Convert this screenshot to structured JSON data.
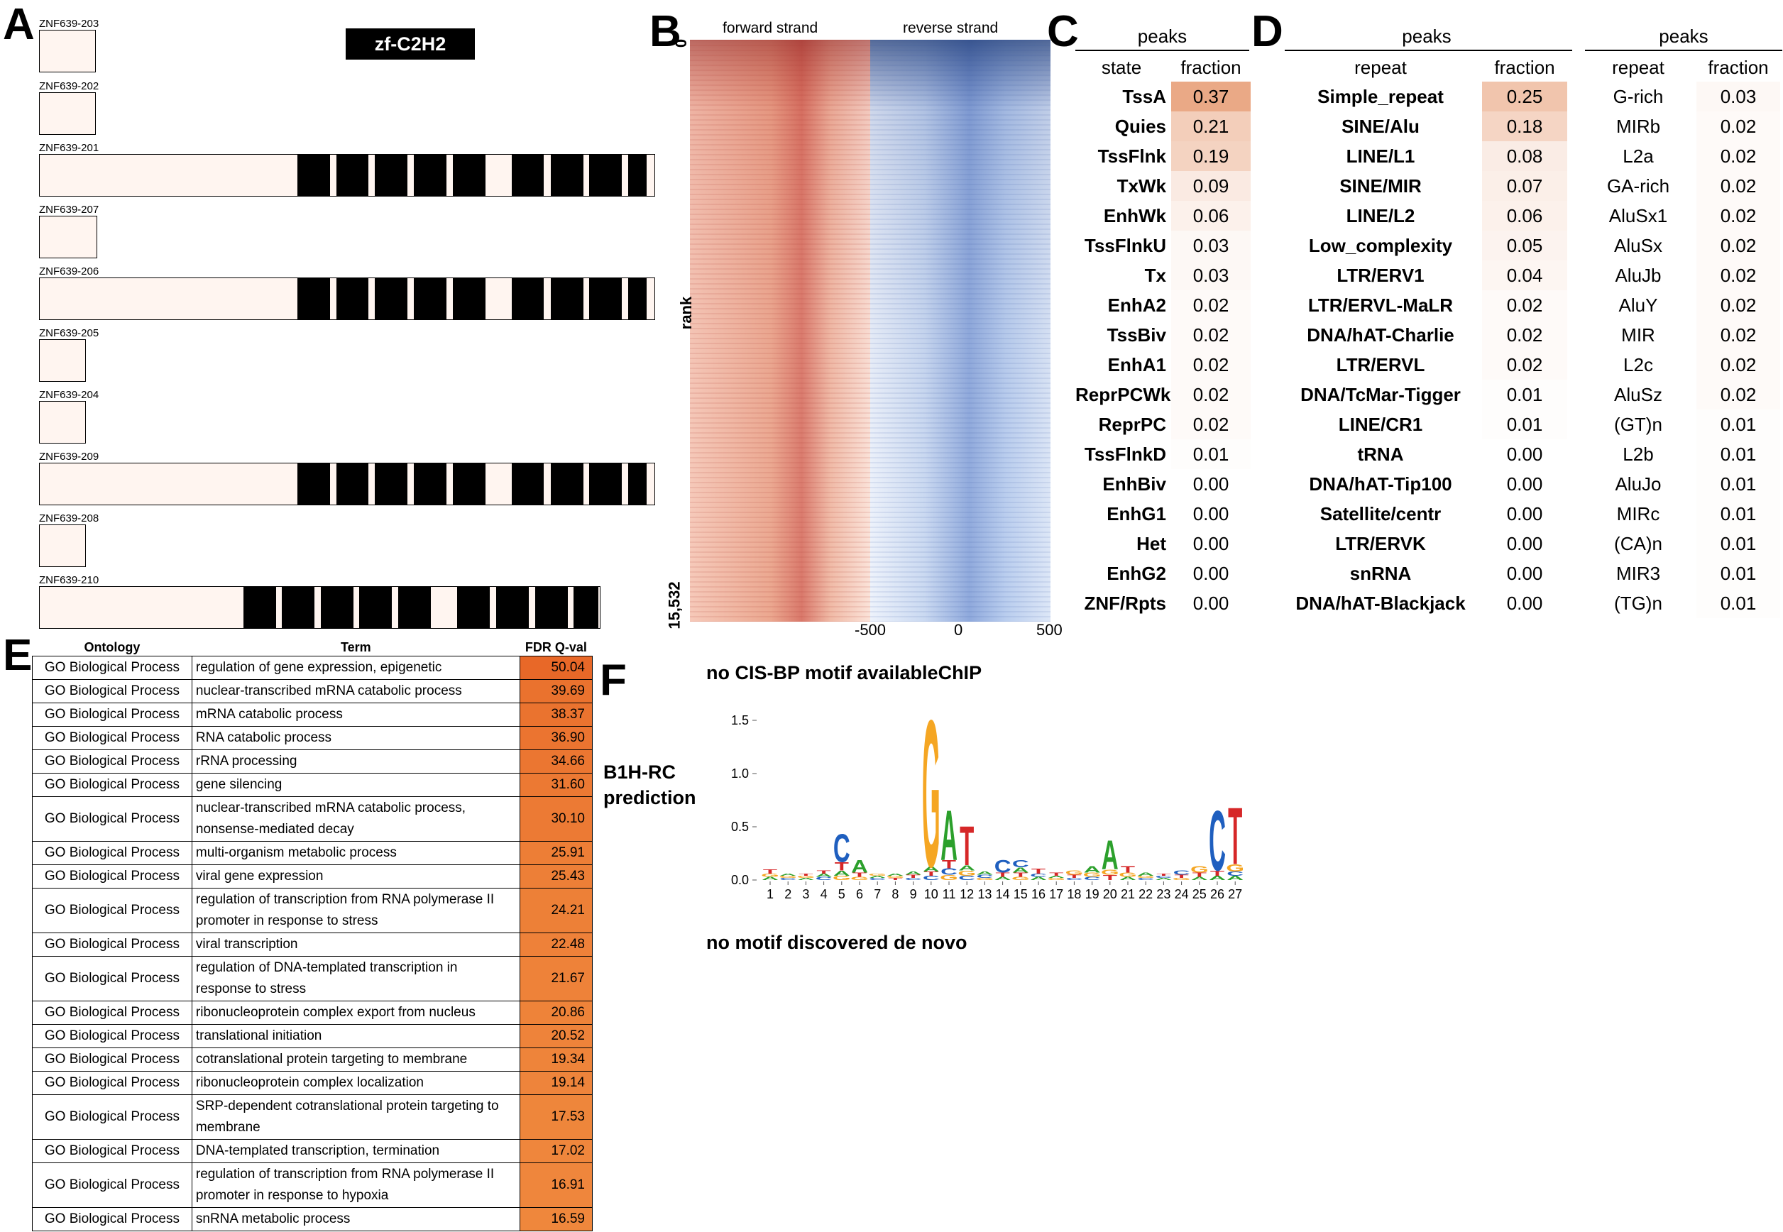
{
  "panels": {
    "a": "A",
    "b": "B",
    "c": "C",
    "d": "D",
    "e": "E",
    "f": "F"
  },
  "panel_a": {
    "domain_label": "zf-C2H2",
    "isoforms": [
      {
        "name": "ZNF639-203"
      },
      {
        "name": "ZNF639-202"
      },
      {
        "name": "ZNF639-201"
      },
      {
        "name": "ZNF639-207"
      },
      {
        "name": "ZNF639-206"
      },
      {
        "name": "ZNF639-205"
      },
      {
        "name": "ZNF639-204"
      },
      {
        "name": "ZNF639-209"
      },
      {
        "name": "ZNF639-208"
      },
      {
        "name": "ZNF639-210"
      }
    ]
  },
  "panel_b": {
    "forward_title": "forward strand",
    "reverse_title": "reverse strand",
    "y_top": "0",
    "y_label": "rank",
    "y_bottom": "15,532",
    "x_ticks": [
      "-500",
      "0",
      "500"
    ],
    "colors": {
      "forward": "#c0392b",
      "reverse": "#1f3f8f"
    }
  },
  "panel_c": {
    "header": "peaks",
    "col_state": "state",
    "col_fraction": "fraction",
    "rows": [
      {
        "label": "TssA",
        "value": "0.37"
      },
      {
        "label": "Quies",
        "value": "0.21"
      },
      {
        "label": "TssFlnk",
        "value": "0.19"
      },
      {
        "label": "TxWk",
        "value": "0.09"
      },
      {
        "label": "EnhWk",
        "value": "0.06"
      },
      {
        "label": "TssFlnkU",
        "value": "0.03"
      },
      {
        "label": "Tx",
        "value": "0.03"
      },
      {
        "label": "EnhA2",
        "value": "0.02"
      },
      {
        "label": "TssBiv",
        "value": "0.02"
      },
      {
        "label": "EnhA1",
        "value": "0.02"
      },
      {
        "label": "ReprPCWk",
        "value": "0.02"
      },
      {
        "label": "ReprPC",
        "value": "0.02"
      },
      {
        "label": "TssFlnkD",
        "value": "0.01"
      },
      {
        "label": "EnhBiv",
        "value": "0.00"
      },
      {
        "label": "EnhG1",
        "value": "0.00"
      },
      {
        "label": "Het",
        "value": "0.00"
      },
      {
        "label": "EnhG2",
        "value": "0.00"
      },
      {
        "label": "ZNF/Rpts",
        "value": "0.00"
      }
    ]
  },
  "panel_d": {
    "left": {
      "header": "peaks",
      "col_repeat": "repeat",
      "col_fraction": "fraction",
      "rows": [
        {
          "label": "Simple_repeat",
          "value": "0.25"
        },
        {
          "label": "SINE/Alu",
          "value": "0.18"
        },
        {
          "label": "LINE/L1",
          "value": "0.08"
        },
        {
          "label": "SINE/MIR",
          "value": "0.07"
        },
        {
          "label": "LINE/L2",
          "value": "0.06"
        },
        {
          "label": "Low_complexity",
          "value": "0.05"
        },
        {
          "label": "LTR/ERV1",
          "value": "0.04"
        },
        {
          "label": "LTR/ERVL-MaLR",
          "value": "0.02"
        },
        {
          "label": "DNA/hAT-Charlie",
          "value": "0.02"
        },
        {
          "label": "LTR/ERVL",
          "value": "0.02"
        },
        {
          "label": "DNA/TcMar-Tigger",
          "value": "0.01"
        },
        {
          "label": "LINE/CR1",
          "value": "0.01"
        },
        {
          "label": "tRNA",
          "value": "0.00"
        },
        {
          "label": "DNA/hAT-Tip100",
          "value": "0.00"
        },
        {
          "label": "Satellite/centr",
          "value": "0.00"
        },
        {
          "label": "LTR/ERVK",
          "value": "0.00"
        },
        {
          "label": "snRNA",
          "value": "0.00"
        },
        {
          "label": "DNA/hAT-Blackjack",
          "value": "0.00"
        }
      ]
    },
    "right": {
      "header": "peaks",
      "col_repeat": "repeat",
      "col_fraction": "fraction",
      "rows": [
        {
          "label": "G-rich",
          "value": "0.03"
        },
        {
          "label": "MIRb",
          "value": "0.02"
        },
        {
          "label": "L2a",
          "value": "0.02"
        },
        {
          "label": "GA-rich",
          "value": "0.02"
        },
        {
          "label": "AluSx1",
          "value": "0.02"
        },
        {
          "label": "AluSx",
          "value": "0.02"
        },
        {
          "label": "AluJb",
          "value": "0.02"
        },
        {
          "label": "AluY",
          "value": "0.02"
        },
        {
          "label": "MIR",
          "value": "0.02"
        },
        {
          "label": "L2c",
          "value": "0.02"
        },
        {
          "label": "AluSz",
          "value": "0.02"
        },
        {
          "label": "(GT)n",
          "value": "0.01"
        },
        {
          "label": "L2b",
          "value": "0.01"
        },
        {
          "label": "AluJo",
          "value": "0.01"
        },
        {
          "label": "MIRc",
          "value": "0.01"
        },
        {
          "label": "(CA)n",
          "value": "0.01"
        },
        {
          "label": "MIR3",
          "value": "0.01"
        },
        {
          "label": "(TG)n",
          "value": "0.01"
        }
      ]
    }
  },
  "panel_e": {
    "col_ontology": "Ontology",
    "col_term": "Term",
    "col_q": "FDR Q-val",
    "rows": [
      {
        "ontology": "GO Biological Process",
        "term": "regulation of gene expression, epigenetic",
        "q": "50.04"
      },
      {
        "ontology": "GO Biological Process",
        "term": "nuclear-transcribed mRNA catabolic process",
        "q": "39.69"
      },
      {
        "ontology": "GO Biological Process",
        "term": "mRNA catabolic process",
        "q": "38.37"
      },
      {
        "ontology": "GO Biological Process",
        "term": "RNA catabolic process",
        "q": "36.90"
      },
      {
        "ontology": "GO Biological Process",
        "term": "rRNA processing",
        "q": "34.66"
      },
      {
        "ontology": "GO Biological Process",
        "term": "gene silencing",
        "q": "31.60"
      },
      {
        "ontology": "GO Biological Process",
        "term": "nuclear-transcribed mRNA catabolic process, nonsense-mediated decay",
        "q": "30.10"
      },
      {
        "ontology": "GO Biological Process",
        "term": "multi-organism metabolic process",
        "q": "25.91"
      },
      {
        "ontology": "GO Biological Process",
        "term": "viral gene expression",
        "q": "25.43"
      },
      {
        "ontology": "GO Biological Process",
        "term": "regulation of transcription from RNA polymerase II promoter in response to stress",
        "q": "24.21"
      },
      {
        "ontology": "GO Biological Process",
        "term": "viral transcription",
        "q": "22.48"
      },
      {
        "ontology": "GO Biological Process",
        "term": "regulation of DNA-templated transcription in response to stress",
        "q": "21.67"
      },
      {
        "ontology": "GO Biological Process",
        "term": "ribonucleoprotein complex export from nucleus",
        "q": "20.86"
      },
      {
        "ontology": "GO Biological Process",
        "term": "translational initiation",
        "q": "20.52"
      },
      {
        "ontology": "GO Biological Process",
        "term": "cotranslational protein targeting to membrane",
        "q": "19.34"
      },
      {
        "ontology": "GO Biological Process",
        "term": "ribonucleoprotein complex localization",
        "q": "19.14"
      },
      {
        "ontology": "GO Biological Process",
        "term": "SRP-dependent cotranslational protein targeting to membrane",
        "q": "17.53"
      },
      {
        "ontology": "GO Biological Process",
        "term": "DNA-templated transcription, termination",
        "q": "17.02"
      },
      {
        "ontology": "GO Biological Process",
        "term": "regulation of transcription from RNA polymerase II promoter in response to hypoxia",
        "q": "16.91"
      },
      {
        "ontology": "GO Biological Process",
        "term": "snRNA metabolic process",
        "q": "16.59"
      }
    ]
  },
  "panel_f": {
    "cisbp_text": "no CIS-BP motif availableChIP",
    "b1h_label": "B1H-RC prediction",
    "denovo_text": "no motif discovered de novo",
    "logo": {
      "y_ticks": [
        "0.0",
        "0.5",
        "1.0",
        "1.5"
      ],
      "positions": [
        "1",
        "2",
        "3",
        "4",
        "5",
        "6",
        "7",
        "8",
        "9",
        "10",
        "11",
        "12",
        "13",
        "14",
        "15",
        "16",
        "17",
        "18",
        "19",
        "20",
        "21",
        "22",
        "23",
        "24",
        "25",
        "26",
        "27"
      ],
      "colors": {
        "A": "#2ca02c",
        "C": "#1f5fbf",
        "G": "#f5a623",
        "T": "#d62728"
      }
    }
  }
}
